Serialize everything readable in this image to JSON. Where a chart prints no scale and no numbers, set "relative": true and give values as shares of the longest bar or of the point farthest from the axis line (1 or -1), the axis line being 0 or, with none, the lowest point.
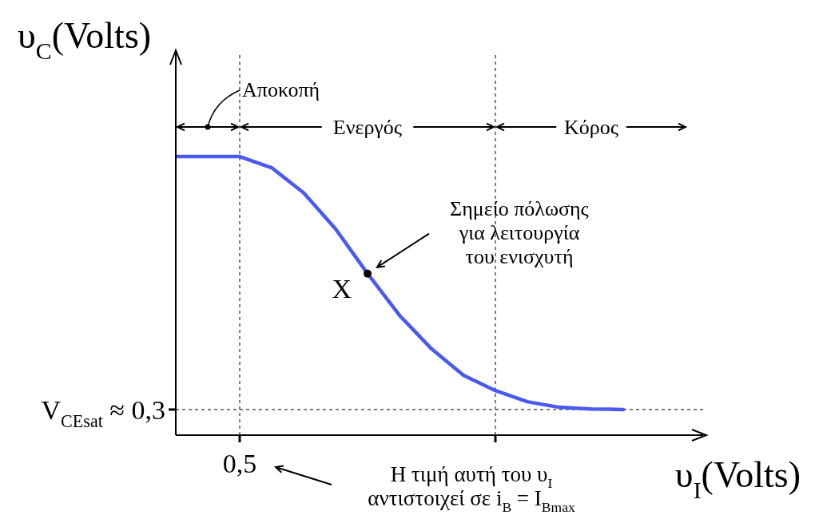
{
  "chart_data": {
    "type": "line",
    "relative": true,
    "ylabel": "υ$_{C}$(Volts)",
    "xlabel": "υ$_{I}$(Volts)",
    "categories": [
      null,
      null,
      null,
      null,
      null,
      null,
      null,
      null,
      null,
      null,
      null,
      null,
      null,
      null,
      null,
      null,
      null
    ],
    "series": [
      {
        "color": "#4a5af0",
        "values": [
          1,
          1,
          1,
          0.96,
          0.87,
          0.74,
          0.58,
          0.43,
          0.31,
          0.215,
          0.16,
          0.12,
          0.1,
          0.094,
          0.092,
          null,
          null
        ]
      }
    ],
    "ref_lines": [
      {
        "axis": "y",
        "value": 0.092,
        "label": "V$_{CEsat}$ ≈ 0,3",
        "color": "#000000",
        "line_style": "dashed"
      }
    ],
    "annotations": [
      "X",
      "Σημείο πόλωσης\nγια λειτουργία\nτου ενισχυτή",
      "Αποκοπή",
      "Ενεργός",
      "Κόρος",
      "0,5",
      "Η τιμή αυτή του υ$_{I}$ αντιστοιχεί σε i$_{B}$ = I$_{Bmax}$"
    ],
    "grid": false,
    "marker": "none",
    "line_style": "solid"
  }
}
